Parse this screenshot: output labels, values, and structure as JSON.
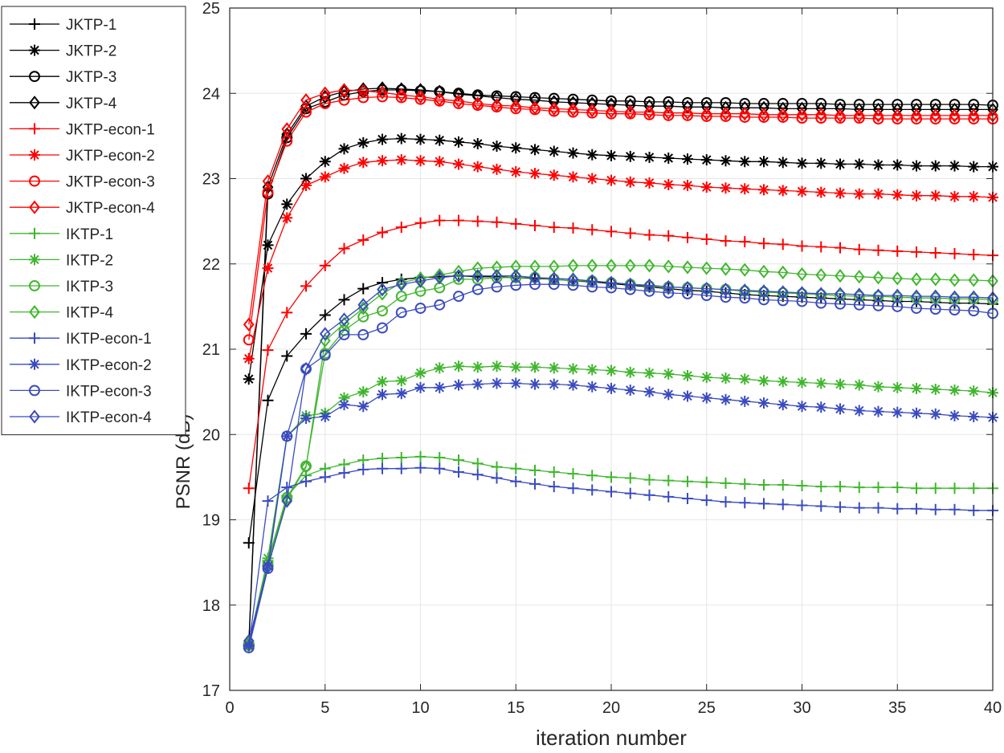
{
  "chart_data": {
    "type": "line",
    "xlabel": "iteration number",
    "ylabel": "PSNR (dB)",
    "xlim": [
      0,
      40
    ],
    "ylim": [
      17,
      25
    ],
    "xticks": [
      0,
      5,
      10,
      15,
      20,
      25,
      30,
      35,
      40
    ],
    "yticks": [
      17,
      18,
      19,
      20,
      21,
      22,
      23,
      24,
      25
    ],
    "grid": true,
    "legend_position": "outside-left",
    "x": [
      1,
      2,
      3,
      4,
      5,
      6,
      7,
      8,
      9,
      10,
      11,
      12,
      13,
      14,
      15,
      16,
      17,
      18,
      19,
      20,
      21,
      22,
      23,
      24,
      25,
      26,
      27,
      28,
      29,
      30,
      31,
      32,
      33,
      34,
      35,
      36,
      37,
      38,
      39,
      40
    ],
    "series": [
      {
        "name": "JKTP-1",
        "color": "#000000",
        "marker": "plus",
        "values": [
          18.73,
          20.4,
          20.92,
          21.18,
          21.4,
          21.58,
          21.71,
          21.78,
          21.82,
          21.84,
          21.85,
          21.86,
          21.85,
          21.85,
          21.84,
          21.83,
          21.82,
          21.8,
          21.79,
          21.77,
          21.75,
          21.73,
          21.71,
          21.69,
          21.68,
          21.66,
          21.64,
          21.63,
          21.62,
          21.61,
          21.6,
          21.59,
          21.58,
          21.57,
          21.56,
          21.56,
          21.55,
          21.54,
          21.54,
          21.53
        ]
      },
      {
        "name": "JKTP-2",
        "color": "#000000",
        "marker": "asterisk",
        "values": [
          20.65,
          22.22,
          22.7,
          23.0,
          23.2,
          23.35,
          23.42,
          23.46,
          23.47,
          23.46,
          23.45,
          23.43,
          23.41,
          23.38,
          23.36,
          23.34,
          23.32,
          23.3,
          23.28,
          23.27,
          23.26,
          23.25,
          23.24,
          23.23,
          23.22,
          23.21,
          23.2,
          23.2,
          23.19,
          23.18,
          23.18,
          23.17,
          23.17,
          23.16,
          23.16,
          23.15,
          23.15,
          23.15,
          23.14,
          23.14
        ]
      },
      {
        "name": "JKTP-3",
        "color": "#000000",
        "marker": "circle",
        "values": [
          17.53,
          22.82,
          23.48,
          23.82,
          23.9,
          23.98,
          24.02,
          24.04,
          24.04,
          24.03,
          24.02,
          24.0,
          23.98,
          23.97,
          23.96,
          23.95,
          23.94,
          23.93,
          23.92,
          23.91,
          23.91,
          23.9,
          23.9,
          23.89,
          23.89,
          23.89,
          23.88,
          23.88,
          23.88,
          23.88,
          23.88,
          23.87,
          23.87,
          23.87,
          23.87,
          23.87,
          23.87,
          23.87,
          23.87,
          23.86
        ]
      },
      {
        "name": "JKTP-4",
        "color": "#000000",
        "marker": "diamond",
        "values": [
          17.55,
          22.9,
          23.52,
          23.85,
          23.96,
          24.02,
          24.05,
          24.06,
          24.05,
          24.04,
          24.02,
          23.99,
          23.97,
          23.95,
          23.93,
          23.92,
          23.9,
          23.89,
          23.88,
          23.87,
          23.86,
          23.85,
          23.85,
          23.84,
          23.84,
          23.83,
          23.83,
          23.83,
          23.82,
          23.82,
          23.82,
          23.82,
          23.81,
          23.81,
          23.81,
          23.81,
          23.81,
          23.81,
          23.81,
          23.81
        ]
      },
      {
        "name": "JKTP-econ-1",
        "color": "#ff0000",
        "marker": "plus",
        "values": [
          19.37,
          20.99,
          21.43,
          21.74,
          21.98,
          22.18,
          22.28,
          22.37,
          22.43,
          22.48,
          22.51,
          22.51,
          22.5,
          22.49,
          22.47,
          22.45,
          22.43,
          22.42,
          22.4,
          22.38,
          22.36,
          22.34,
          22.33,
          22.31,
          22.29,
          22.27,
          22.26,
          22.24,
          22.23,
          22.21,
          22.2,
          22.19,
          22.17,
          22.16,
          22.15,
          22.14,
          22.13,
          22.12,
          22.11,
          22.1
        ]
      },
      {
        "name": "JKTP-econ-2",
        "color": "#ff0000",
        "marker": "asterisk",
        "values": [
          20.89,
          21.95,
          22.54,
          22.92,
          23.02,
          23.12,
          23.19,
          23.21,
          23.22,
          23.21,
          23.2,
          23.17,
          23.14,
          23.11,
          23.08,
          23.06,
          23.04,
          23.02,
          23.0,
          22.98,
          22.96,
          22.95,
          22.93,
          22.92,
          22.9,
          22.89,
          22.88,
          22.87,
          22.86,
          22.85,
          22.84,
          22.83,
          22.82,
          22.82,
          22.81,
          22.8,
          22.8,
          22.79,
          22.79,
          22.78
        ]
      },
      {
        "name": "JKTP-econ-3",
        "color": "#ff0000",
        "marker": "circle",
        "values": [
          21.11,
          22.84,
          23.44,
          23.78,
          23.88,
          23.92,
          23.95,
          23.96,
          23.95,
          23.93,
          23.91,
          23.88,
          23.86,
          23.84,
          23.82,
          23.81,
          23.79,
          23.78,
          23.77,
          23.76,
          23.76,
          23.75,
          23.74,
          23.74,
          23.73,
          23.73,
          23.72,
          23.72,
          23.72,
          23.71,
          23.71,
          23.71,
          23.71,
          23.7,
          23.7,
          23.7,
          23.7,
          23.7,
          23.7,
          23.7
        ]
      },
      {
        "name": "JKTP-econ-4",
        "color": "#ff0000",
        "marker": "diamond",
        "values": [
          21.29,
          22.97,
          23.58,
          23.92,
          24.0,
          24.04,
          24.03,
          24.01,
          23.98,
          23.96,
          23.93,
          23.91,
          23.88,
          23.86,
          23.85,
          23.83,
          23.82,
          23.81,
          23.8,
          23.79,
          23.78,
          23.78,
          23.77,
          23.77,
          23.76,
          23.76,
          23.76,
          23.75,
          23.75,
          23.75,
          23.75,
          23.74,
          23.74,
          23.74,
          23.74,
          23.74,
          23.74,
          23.74,
          23.74,
          23.74
        ]
      },
      {
        "name": "IKTP-1",
        "color": "#3fb62d",
        "marker": "plus",
        "values": [
          17.55,
          18.52,
          19.28,
          19.52,
          19.6,
          19.65,
          19.7,
          19.72,
          19.73,
          19.74,
          19.73,
          19.7,
          19.66,
          19.62,
          19.6,
          19.58,
          19.56,
          19.54,
          19.52,
          19.5,
          19.49,
          19.47,
          19.46,
          19.45,
          19.44,
          19.43,
          19.42,
          19.41,
          19.41,
          19.4,
          19.39,
          19.39,
          19.38,
          19.38,
          19.38,
          19.37,
          19.37,
          19.37,
          19.37,
          19.37
        ]
      },
      {
        "name": "IKTP-2",
        "color": "#3fb62d",
        "marker": "asterisk",
        "values": [
          17.55,
          18.55,
          19.98,
          20.22,
          20.25,
          20.43,
          20.5,
          20.62,
          20.63,
          20.72,
          20.78,
          20.8,
          20.79,
          20.8,
          20.79,
          20.79,
          20.78,
          20.77,
          20.76,
          20.75,
          20.73,
          20.72,
          20.71,
          20.69,
          20.67,
          20.66,
          20.65,
          20.63,
          20.62,
          20.61,
          20.6,
          20.59,
          20.58,
          20.56,
          20.55,
          20.54,
          20.53,
          20.52,
          20.51,
          20.49
        ]
      },
      {
        "name": "IKTP-3",
        "color": "#3fb62d",
        "marker": "circle",
        "values": [
          17.53,
          18.48,
          19.26,
          19.63,
          20.95,
          21.22,
          21.38,
          21.45,
          21.62,
          21.68,
          21.72,
          21.82,
          21.82,
          21.84,
          21.84,
          21.84,
          21.82,
          21.8,
          21.8,
          21.78,
          21.76,
          21.74,
          21.73,
          21.72,
          21.71,
          21.7,
          21.68,
          21.67,
          21.66,
          21.65,
          21.64,
          21.63,
          21.62,
          21.62,
          21.61,
          21.6,
          21.6,
          21.59,
          21.59,
          21.58
        ]
      },
      {
        "name": "IKTP-4",
        "color": "#3fb62d",
        "marker": "diamond",
        "values": [
          17.56,
          18.5,
          19.24,
          19.62,
          21.1,
          21.3,
          21.48,
          21.65,
          21.78,
          21.83,
          21.87,
          21.91,
          21.95,
          21.96,
          21.97,
          21.97,
          21.97,
          21.98,
          21.98,
          21.98,
          21.98,
          21.98,
          21.97,
          21.96,
          21.95,
          21.94,
          21.93,
          21.91,
          21.9,
          21.88,
          21.87,
          21.86,
          21.85,
          21.84,
          21.83,
          21.82,
          21.82,
          21.81,
          21.81,
          21.8
        ]
      },
      {
        "name": "IKTP-econ-1",
        "color": "#3a4bbf",
        "marker": "plus",
        "values": [
          17.52,
          19.22,
          19.38,
          19.45,
          19.5,
          19.55,
          19.59,
          19.6,
          19.6,
          19.61,
          19.6,
          19.56,
          19.53,
          19.49,
          19.45,
          19.42,
          19.39,
          19.37,
          19.35,
          19.33,
          19.31,
          19.29,
          19.27,
          19.25,
          19.23,
          19.21,
          19.2,
          19.19,
          19.18,
          19.17,
          19.16,
          19.15,
          19.14,
          19.14,
          19.13,
          19.13,
          19.12,
          19.12,
          19.11,
          19.11
        ]
      },
      {
        "name": "IKTP-econ-2",
        "color": "#3a4bbf",
        "marker": "asterisk",
        "values": [
          17.53,
          18.46,
          19.98,
          20.19,
          20.21,
          20.35,
          20.33,
          20.47,
          20.48,
          20.55,
          20.55,
          20.58,
          20.59,
          20.6,
          20.6,
          20.59,
          20.59,
          20.58,
          20.56,
          20.54,
          20.52,
          20.5,
          20.47,
          20.45,
          20.43,
          20.41,
          20.39,
          20.37,
          20.35,
          20.33,
          20.32,
          20.3,
          20.28,
          20.27,
          20.26,
          20.25,
          20.24,
          20.22,
          20.21,
          20.2
        ]
      },
      {
        "name": "IKTP-econ-3",
        "color": "#3a4bbf",
        "marker": "circle",
        "values": [
          17.5,
          18.43,
          19.98,
          20.77,
          20.93,
          21.17,
          21.17,
          21.25,
          21.43,
          21.48,
          21.52,
          21.62,
          21.7,
          21.73,
          21.75,
          21.76,
          21.76,
          21.75,
          21.73,
          21.72,
          21.7,
          21.68,
          21.66,
          21.65,
          21.63,
          21.61,
          21.6,
          21.58,
          21.57,
          21.56,
          21.54,
          21.53,
          21.52,
          21.51,
          21.5,
          21.48,
          21.47,
          21.46,
          21.45,
          21.42
        ]
      },
      {
        "name": "IKTP-econ-4",
        "color": "#3a4bbf",
        "marker": "diamond",
        "values": [
          17.58,
          18.45,
          19.22,
          20.77,
          21.18,
          21.35,
          21.52,
          21.7,
          21.76,
          21.8,
          21.84,
          21.86,
          21.86,
          21.86,
          21.86,
          21.84,
          21.83,
          21.82,
          21.8,
          21.78,
          21.76,
          21.75,
          21.73,
          21.72,
          21.71,
          21.7,
          21.69,
          21.68,
          21.67,
          21.66,
          21.65,
          21.65,
          21.64,
          21.63,
          21.63,
          21.62,
          21.62,
          21.61,
          21.61,
          21.6
        ]
      }
    ]
  }
}
